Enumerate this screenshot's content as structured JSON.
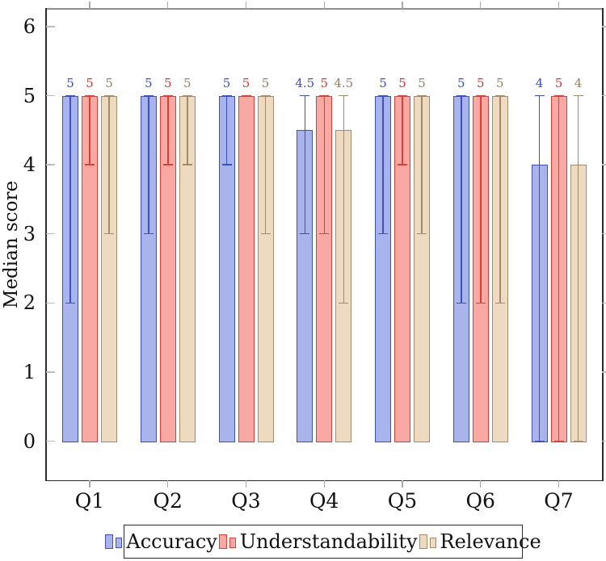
{
  "chart_data": {
    "type": "bar",
    "title": "",
    "xlabel": "",
    "ylabel": "Median score",
    "categories": [
      "Q1",
      "Q2",
      "Q3",
      "Q4",
      "Q5",
      "Q6",
      "Q7"
    ],
    "yticks": [
      0,
      1,
      2,
      3,
      4,
      5,
      6
    ],
    "ylim": [
      0,
      6
    ],
    "grid": false,
    "legend_position": "bottom",
    "series": [
      {
        "name": "Accuracy",
        "fill": "#aab4ec",
        "stroke": "#3d50c3",
        "label_color": "#3d50c3",
        "values": [
          5,
          5,
          5,
          4.5,
          5,
          5,
          4
        ],
        "value_labels": [
          "5",
          "5",
          "5",
          "4.5",
          "5",
          "5",
          "4"
        ],
        "whisker_low": [
          2,
          3,
          4,
          3,
          3,
          2,
          0
        ],
        "whisker_high": [
          5,
          5,
          5,
          5,
          5,
          5,
          5
        ]
      },
      {
        "name": "Understandability",
        "fill": "#f8a9a3",
        "stroke": "#dd3e36",
        "label_color": "#d03a32",
        "values": [
          5,
          5,
          5,
          5,
          5,
          5,
          5
        ],
        "value_labels": [
          "5",
          "5",
          "5",
          "5",
          "5",
          "5",
          "5"
        ],
        "whisker_low": [
          4,
          4,
          5,
          3,
          4,
          2,
          0
        ],
        "whisker_high": [
          5,
          5,
          5,
          5,
          5,
          5,
          5
        ]
      },
      {
        "name": "Relevance",
        "fill": "#eddac1",
        "stroke": "#a28b66",
        "label_color": "#96815f",
        "values": [
          5,
          5,
          5,
          4.5,
          5,
          5,
          4
        ],
        "value_labels": [
          "5",
          "5",
          "5",
          "4.5",
          "5",
          "5",
          "4"
        ],
        "whisker_low": [
          3,
          4,
          3,
          2,
          3,
          2,
          0
        ],
        "whisker_high": [
          5,
          5,
          5,
          5,
          5,
          5,
          5
        ]
      }
    ]
  }
}
